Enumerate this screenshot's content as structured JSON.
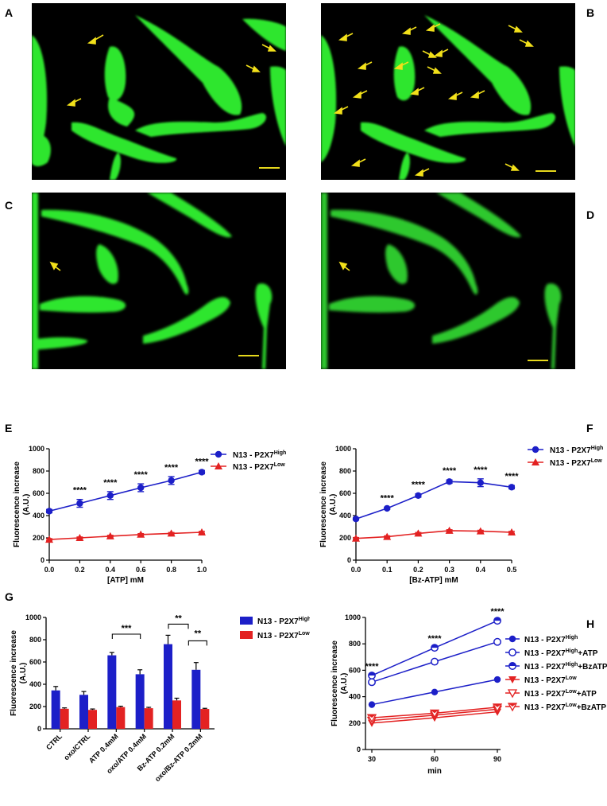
{
  "panel_labels": {
    "a": "A",
    "b": "B",
    "c": "C",
    "d": "D",
    "e": "E",
    "f": "F",
    "g": "G",
    "h": "H"
  },
  "colors": {
    "high": "#1c1fc8",
    "low": "#e32222",
    "cell": "#2fe62f",
    "background": "#000000",
    "arrow": "#f2e01a",
    "scalebar": "#e6d81c"
  },
  "micrographs": [
    {
      "id": "A",
      "arrows": 4
    },
    {
      "id": "B",
      "arrows": 18
    },
    {
      "id": "C",
      "arrows": 1
    },
    {
      "id": "D",
      "arrows": 1
    }
  ],
  "chart_data": [
    {
      "id": "E",
      "type": "line",
      "ylabel": "Fluorescence increase (A.U.)",
      "xlabel": "[ATP] mM",
      "xlim": [
        0,
        1.0
      ],
      "ylim": [
        0,
        1000
      ],
      "xticks": [
        "0.0",
        "0.2",
        "0.4",
        "0.6",
        "0.8",
        "1.0"
      ],
      "yticks": [
        "0",
        "200",
        "400",
        "600",
        "800",
        "1000"
      ],
      "x": [
        0.0,
        0.2,
        0.4,
        0.6,
        0.8,
        1.0
      ],
      "series": [
        {
          "name_main": "N13 - P2X7",
          "name_sup": "High",
          "marker": "circle",
          "color": "#1c1fc8",
          "values": [
            440,
            510,
            580,
            650,
            715,
            790
          ],
          "errors": [
            15,
            35,
            35,
            35,
            35,
            15
          ]
        },
        {
          "name_main": "N13 - P2X7",
          "name_sup": "Low",
          "marker": "triangle",
          "color": "#e32222",
          "values": [
            185,
            200,
            215,
            230,
            240,
            250
          ],
          "errors": [
            8,
            8,
            8,
            8,
            8,
            8
          ]
        }
      ],
      "annotations": [
        {
          "x": 0.2,
          "text": "****"
        },
        {
          "x": 0.4,
          "text": "****"
        },
        {
          "x": 0.6,
          "text": "****"
        },
        {
          "x": 0.8,
          "text": "****"
        },
        {
          "x": 1.0,
          "text": "****"
        }
      ],
      "legend": "top-right"
    },
    {
      "id": "F",
      "type": "line",
      "ylabel": "Fluorescence increase (A.U.)",
      "xlabel": "[Bz-ATP] mM",
      "xlim": [
        0,
        0.5
      ],
      "ylim": [
        0,
        1000
      ],
      "xticks": [
        "0.0",
        "0.1",
        "0.2",
        "0.3",
        "0.4",
        "0.5"
      ],
      "yticks": [
        "0",
        "200",
        "400",
        "600",
        "800",
        "1000"
      ],
      "x": [
        0.0,
        0.1,
        0.2,
        0.3,
        0.4,
        0.5
      ],
      "series": [
        {
          "name_main": "N13 - P2X7",
          "name_sup": "High",
          "marker": "circle",
          "color": "#1c1fc8",
          "values": [
            370,
            465,
            580,
            705,
            695,
            655
          ],
          "errors": [
            10,
            10,
            15,
            15,
            35,
            15
          ]
        },
        {
          "name_main": "N13 - P2X7",
          "name_sup": "Low",
          "marker": "triangle",
          "color": "#e32222",
          "values": [
            195,
            210,
            240,
            265,
            260,
            250
          ],
          "errors": [
            8,
            8,
            8,
            8,
            8,
            8
          ]
        }
      ],
      "annotations": [
        {
          "x": 0.1,
          "text": "****"
        },
        {
          "x": 0.2,
          "text": "****"
        },
        {
          "x": 0.3,
          "text": "****"
        },
        {
          "x": 0.4,
          "text": "****"
        },
        {
          "x": 0.5,
          "text": "****"
        }
      ],
      "legend": "top-right"
    },
    {
      "id": "G",
      "type": "bar",
      "ylabel": "Fluorescence increase (A.U.)",
      "ylim": [
        0,
        1000
      ],
      "yticks": [
        "0",
        "200",
        "400",
        "600",
        "800",
        "1000"
      ],
      "categories": [
        "CTRL",
        "oxo/CTRL",
        "ATP 0.4mM",
        "oxo/ATP 0.4mM",
        "Bz-ATP 0.2mM",
        "oxo/Bz-ATP 0.2mM"
      ],
      "series": [
        {
          "name_main": "N13 - P2X7",
          "name_sup": "High",
          "color": "#1c1fc8",
          "values": [
            345,
            305,
            660,
            490,
            760,
            530
          ],
          "errors": [
            35,
            30,
            25,
            40,
            80,
            65
          ]
        },
        {
          "name_main": "N13 - P2X7",
          "name_sup": "Low",
          "color": "#e32222",
          "values": [
            180,
            170,
            195,
            185,
            255,
            178
          ],
          "errors": [
            8,
            8,
            8,
            8,
            20,
            6
          ]
        }
      ],
      "brackets": [
        {
          "from": 2,
          "to": 3,
          "y": 850,
          "text": "***"
        },
        {
          "from": 4,
          "to": 4.5,
          "y": 940,
          "text": "**",
          "bar_from": 4,
          "bar_to": 5
        },
        {
          "from": 5,
          "to": 5,
          "y": 790,
          "text": "**"
        }
      ],
      "legend": "right"
    },
    {
      "id": "H",
      "type": "line",
      "ylabel": "Fluorescence increase (A.U.)",
      "xlabel": "min",
      "xlim": [
        30,
        90
      ],
      "ylim": [
        0,
        1000
      ],
      "xticks": [
        "30",
        "60",
        "90"
      ],
      "yticks": [
        "0",
        "200",
        "400",
        "600",
        "800",
        "1000"
      ],
      "x": [
        30,
        60,
        90
      ],
      "series": [
        {
          "name_main": "N13 - P2X7",
          "name_sup": "High",
          "name_suffix": "",
          "marker": "circle-filled",
          "color": "#1c1fc8",
          "values": [
            340,
            435,
            530
          ]
        },
        {
          "name_main": "N13 - P2X7",
          "name_sup": "High",
          "name_suffix": "+ATP",
          "marker": "circle-open",
          "color": "#1c1fc8",
          "values": [
            510,
            665,
            815
          ]
        },
        {
          "name_main": "N13 - P2X7",
          "name_sup": "High",
          "name_suffix": "+BzATP",
          "marker": "circle-half",
          "color": "#1c1fc8",
          "values": [
            560,
            770,
            975
          ]
        },
        {
          "name_main": "N13 - P2X7",
          "name_sup": "Low",
          "name_suffix": "",
          "marker": "triangle-down-filled",
          "color": "#e32222",
          "values": [
            200,
            240,
            285
          ]
        },
        {
          "name_main": "N13 - P2X7",
          "name_sup": "Low",
          "name_suffix": "+ATP",
          "marker": "triangle-down-open",
          "color": "#e32222",
          "values": [
            220,
            260,
            305
          ]
        },
        {
          "name_main": "N13 - P2X7",
          "name_sup": "Low",
          "name_suffix": "+BzATP",
          "marker": "triangle-down-half",
          "color": "#e32222",
          "values": [
            240,
            275,
            320
          ]
        }
      ],
      "annotations": [
        {
          "x": 30,
          "text": "****"
        },
        {
          "x": 60,
          "text": "****"
        },
        {
          "x": 90,
          "text": "****"
        }
      ],
      "legend": "right"
    }
  ]
}
